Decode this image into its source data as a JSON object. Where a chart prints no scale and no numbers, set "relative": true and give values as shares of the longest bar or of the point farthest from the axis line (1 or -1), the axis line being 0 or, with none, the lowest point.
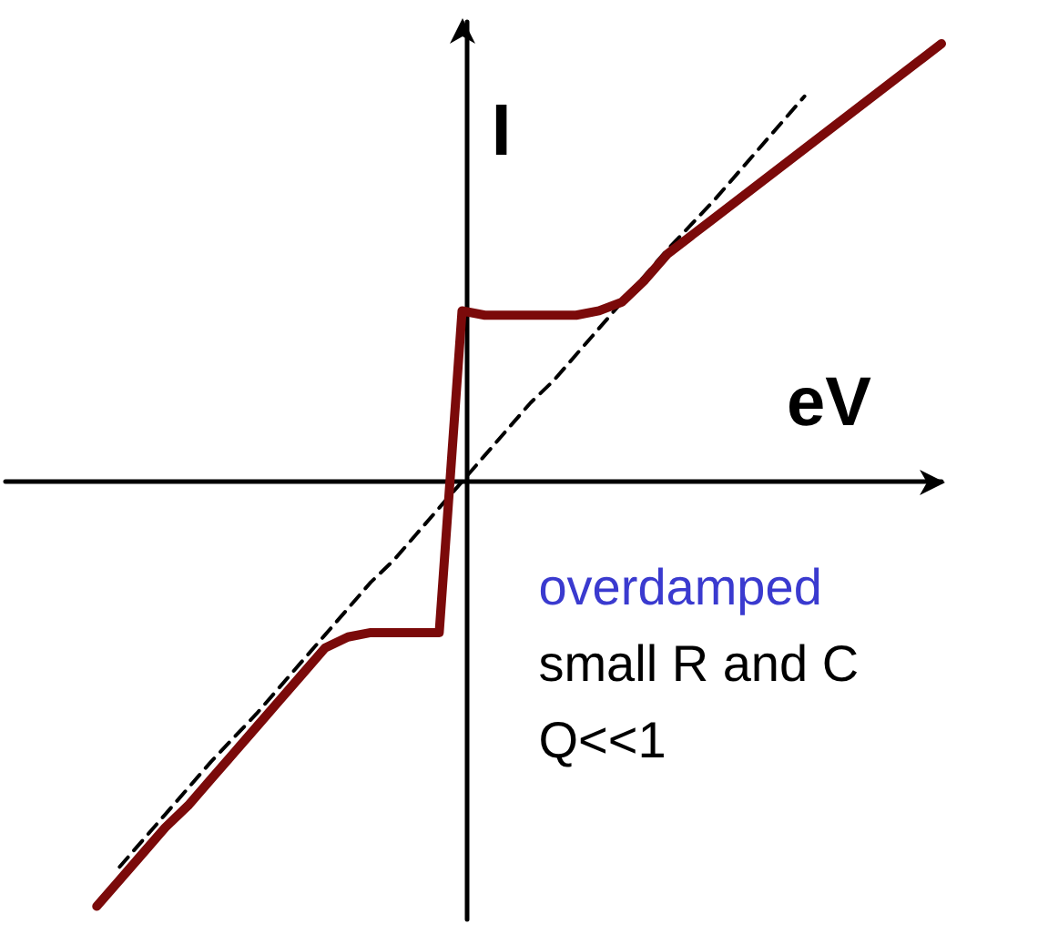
{
  "chart_data": {
    "type": "line",
    "relative": true,
    "xlabel": "eV",
    "ylabel": "I",
    "annotations": [
      "overdamped",
      "small R and C",
      "Q<<1"
    ],
    "categories": [
      null,
      null,
      null,
      null,
      null,
      null,
      null,
      null,
      null,
      null,
      null,
      null,
      null,
      null,
      null,
      null,
      null,
      null,
      null,
      null,
      null,
      null,
      null,
      null,
      null,
      null,
      null,
      null,
      null,
      null,
      null,
      null,
      null,
      null,
      null,
      null,
      null,
      null,
      null,
      null,
      null,
      null
    ],
    "ylim": [
      -1.0,
      1.05
    ],
    "marker": "none",
    "series": [
      {
        "color": "#7b0a0a",
        "line_style": "solid",
        "values": [
          null,
          null,
          null,
          null,
          -0.97,
          -0.91,
          -0.85,
          -0.79,
          -0.74,
          -0.68,
          -0.62,
          -0.56,
          -0.5,
          -0.44,
          -0.38,
          -0.355,
          -0.345,
          -0.345,
          -0.345,
          -0.345,
          0.39,
          0.38,
          0.38,
          0.38,
          0.38,
          0.38,
          0.39,
          0.41,
          0.46,
          0.52,
          0.56,
          0.6,
          0.64,
          0.68,
          0.72,
          0.76,
          0.8,
          0.84,
          0.88,
          0.92,
          0.96,
          1.0
        ]
      },
      {
        "color": "#000000",
        "line_style": "dashed",
        "values": [
          null,
          null,
          null,
          null,
          null,
          -0.88,
          -0.82,
          -0.76,
          -0.7,
          -0.64,
          -0.585,
          -0.53,
          -0.47,
          -0.41,
          -0.35,
          -0.29,
          -0.23,
          -0.18,
          -0.12,
          -0.06,
          0,
          0.06,
          0.12,
          0.18,
          0.23,
          0.29,
          0.35,
          0.41,
          0.47,
          0.53,
          0.585,
          0.64,
          0.7,
          0.76,
          0.82,
          0.88,
          null,
          null,
          null,
          null,
          null,
          null
        ]
      }
    ]
  }
}
